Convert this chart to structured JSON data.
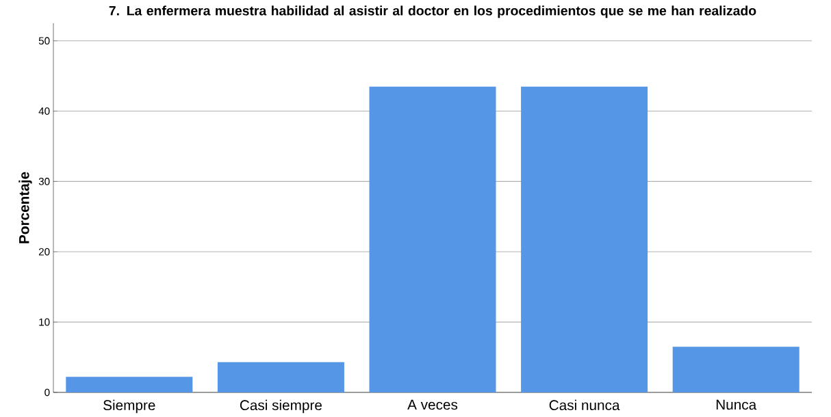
{
  "chart_data": {
    "type": "bar",
    "title": "7. La enfermera muestra habilidad al asistir al doctor en los procedimientos que se me han realizado",
    "ylabel": "Porcentaje",
    "categories": [
      "Siempre",
      "Casi siempre",
      "A veces",
      "Casi nunca",
      "Nunca"
    ],
    "values": [
      2.2,
      4.3,
      43.5,
      43.5,
      6.5
    ],
    "color": "#5596e6",
    "ylim": [
      0,
      52.5
    ],
    "yticks": [
      0,
      10,
      20,
      30,
      40,
      50
    ],
    "grid": "y"
  }
}
